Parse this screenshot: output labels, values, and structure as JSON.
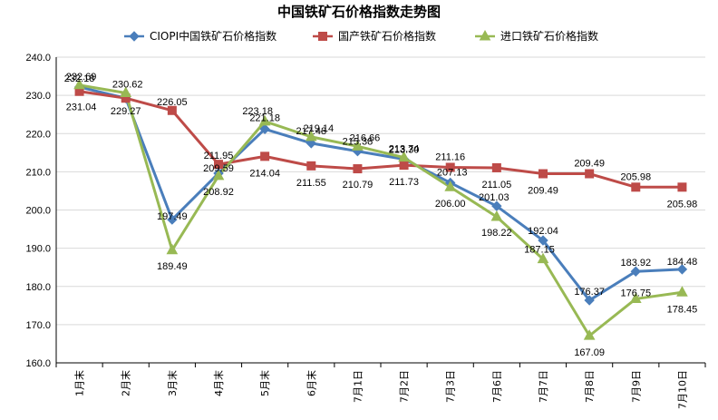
{
  "chart_data": {
    "type": "line",
    "title": "中国铁矿石价格指数走势图",
    "xlabel": "",
    "ylabel": "",
    "ylim": [
      160,
      240
    ],
    "ytick_step": 10,
    "y_tick_labels": [
      "160.0",
      "170.0",
      "180.0",
      "190.0",
      "200.0",
      "210.0",
      "220.0",
      "230.0",
      "240.0"
    ],
    "grid": true,
    "legend_position": "top",
    "categories": [
      "1月末",
      "2月末",
      "3月末",
      "4月末",
      "5月末",
      "6月末",
      "7月1日",
      "7月2日",
      "7月3日",
      "7月6日",
      "7月7日",
      "7月8日",
      "7月9日",
      "7月10日"
    ],
    "series": [
      {
        "name": "CIOPI中国铁矿石价格指数",
        "color": "#4a7ebb",
        "marker": "diamond",
        "values": [
          232.18,
          229.27,
          197.49,
          209.59,
          221.18,
          217.48,
          215.38,
          213.3,
          207.13,
          201.03,
          192.04,
          176.37,
          183.92,
          184.48
        ],
        "labels": [
          "232.18",
          "229.27",
          "197.49",
          "209.59",
          "221.18",
          "217.48",
          "215.38",
          "213.30",
          "207.13",
          "201.03",
          "192.04",
          "176.37",
          "183.92",
          "184.48"
        ]
      },
      {
        "name": "国产铁矿石价格指数",
        "color": "#be4b48",
        "marker": "square",
        "values": [
          231.04,
          229.27,
          226.05,
          211.95,
          214.04,
          211.55,
          210.79,
          211.73,
          211.16,
          211.05,
          209.49,
          209.49,
          205.98,
          205.98
        ],
        "labels": [
          "231.04",
          "",
          "226.05",
          "211.95",
          "214.04",
          "211.55",
          "210.79",
          "211.73",
          "211.16",
          "211.05",
          "209.49",
          "209.49",
          "205.98",
          "205.98"
        ]
      },
      {
        "name": "进口铁矿石价格指数",
        "color": "#98b954",
        "marker": "triangle",
        "values": [
          232.69,
          230.62,
          189.49,
          208.92,
          223.18,
          219.14,
          216.66,
          213.74,
          206.0,
          198.22,
          187.15,
          167.09,
          176.75,
          178.45
        ],
        "labels": [
          "232.69",
          "230.62",
          "189.49",
          "208.92",
          "223.18",
          "219.14",
          "216.66",
          "213.74",
          "206.00",
          "198.22",
          "187.15",
          "167.09",
          "176.75",
          "178.45"
        ]
      }
    ]
  }
}
